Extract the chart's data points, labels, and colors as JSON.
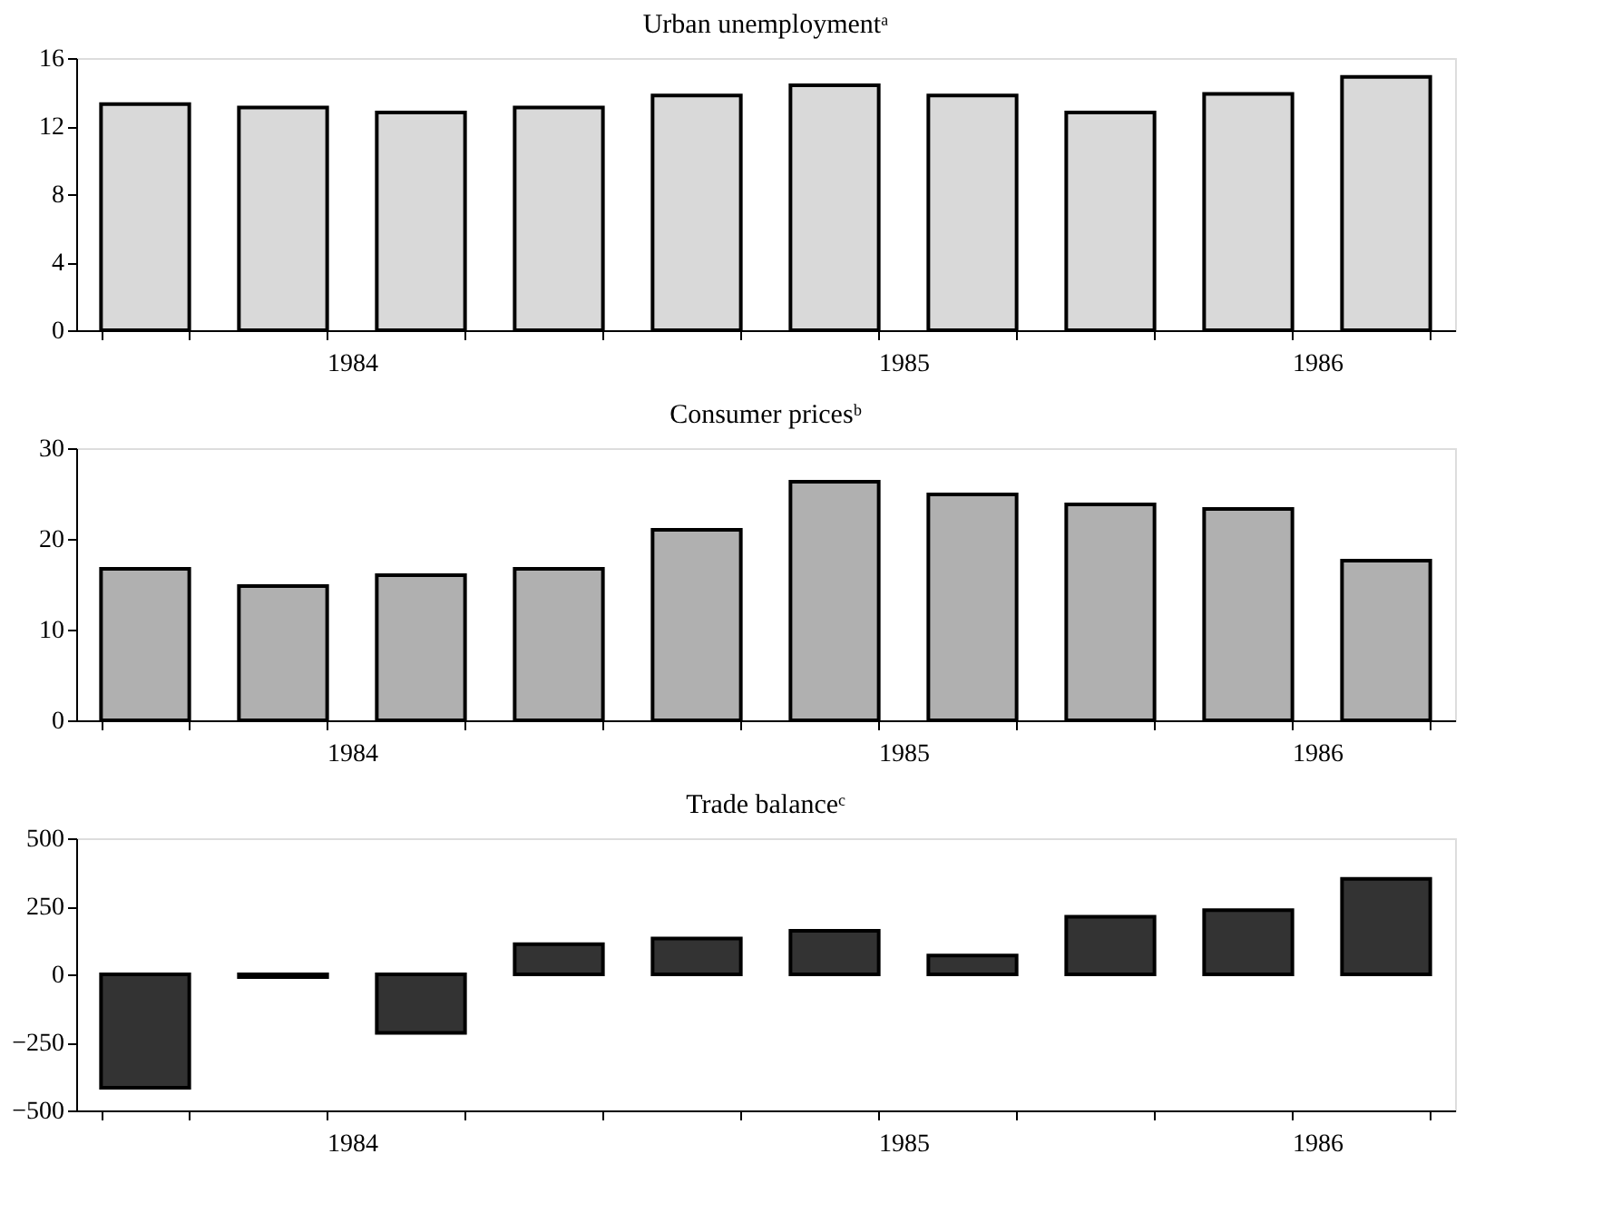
{
  "chart_data": [
    {
      "type": "bar",
      "title": "Urban unemploymentᵃ",
      "categories": [
        null,
        "1984",
        null,
        null,
        null,
        "1985",
        null,
        null,
        "1986",
        null
      ],
      "values": [
        13.3,
        13.1,
        12.8,
        13.1,
        13.8,
        14.4,
        13.8,
        12.8,
        13.9,
        14.9
      ],
      "color": "#d9d9d9",
      "ylim": [
        0,
        16
      ],
      "yticks": [
        0,
        4,
        8,
        12,
        16
      ],
      "grid": false
    },
    {
      "type": "bar",
      "title": "Consumer pricesᵇ",
      "categories": [
        null,
        "1984",
        null,
        null,
        null,
        "1985",
        null,
        null,
        "1986",
        null
      ],
      "values": [
        16.7,
        14.8,
        16.0,
        16.7,
        21.0,
        26.3,
        24.9,
        23.8,
        23.3,
        17.6
      ],
      "color": "#b0b0b0",
      "ylim": [
        0,
        30
      ],
      "yticks": [
        0,
        10,
        20,
        30
      ],
      "grid": false
    },
    {
      "type": "bar",
      "title": "Trade balanceᶜ",
      "categories": [
        null,
        "1984",
        null,
        null,
        null,
        "1985",
        null,
        null,
        "1986",
        null
      ],
      "values": [
        -417,
        -10,
        -215,
        111,
        132,
        160,
        69,
        212,
        236,
        351
      ],
      "color": "#333333",
      "ylim": [
        -500,
        500
      ],
      "yticks": [
        -500,
        -250,
        0,
        250,
        500
      ],
      "grid": false
    }
  ]
}
